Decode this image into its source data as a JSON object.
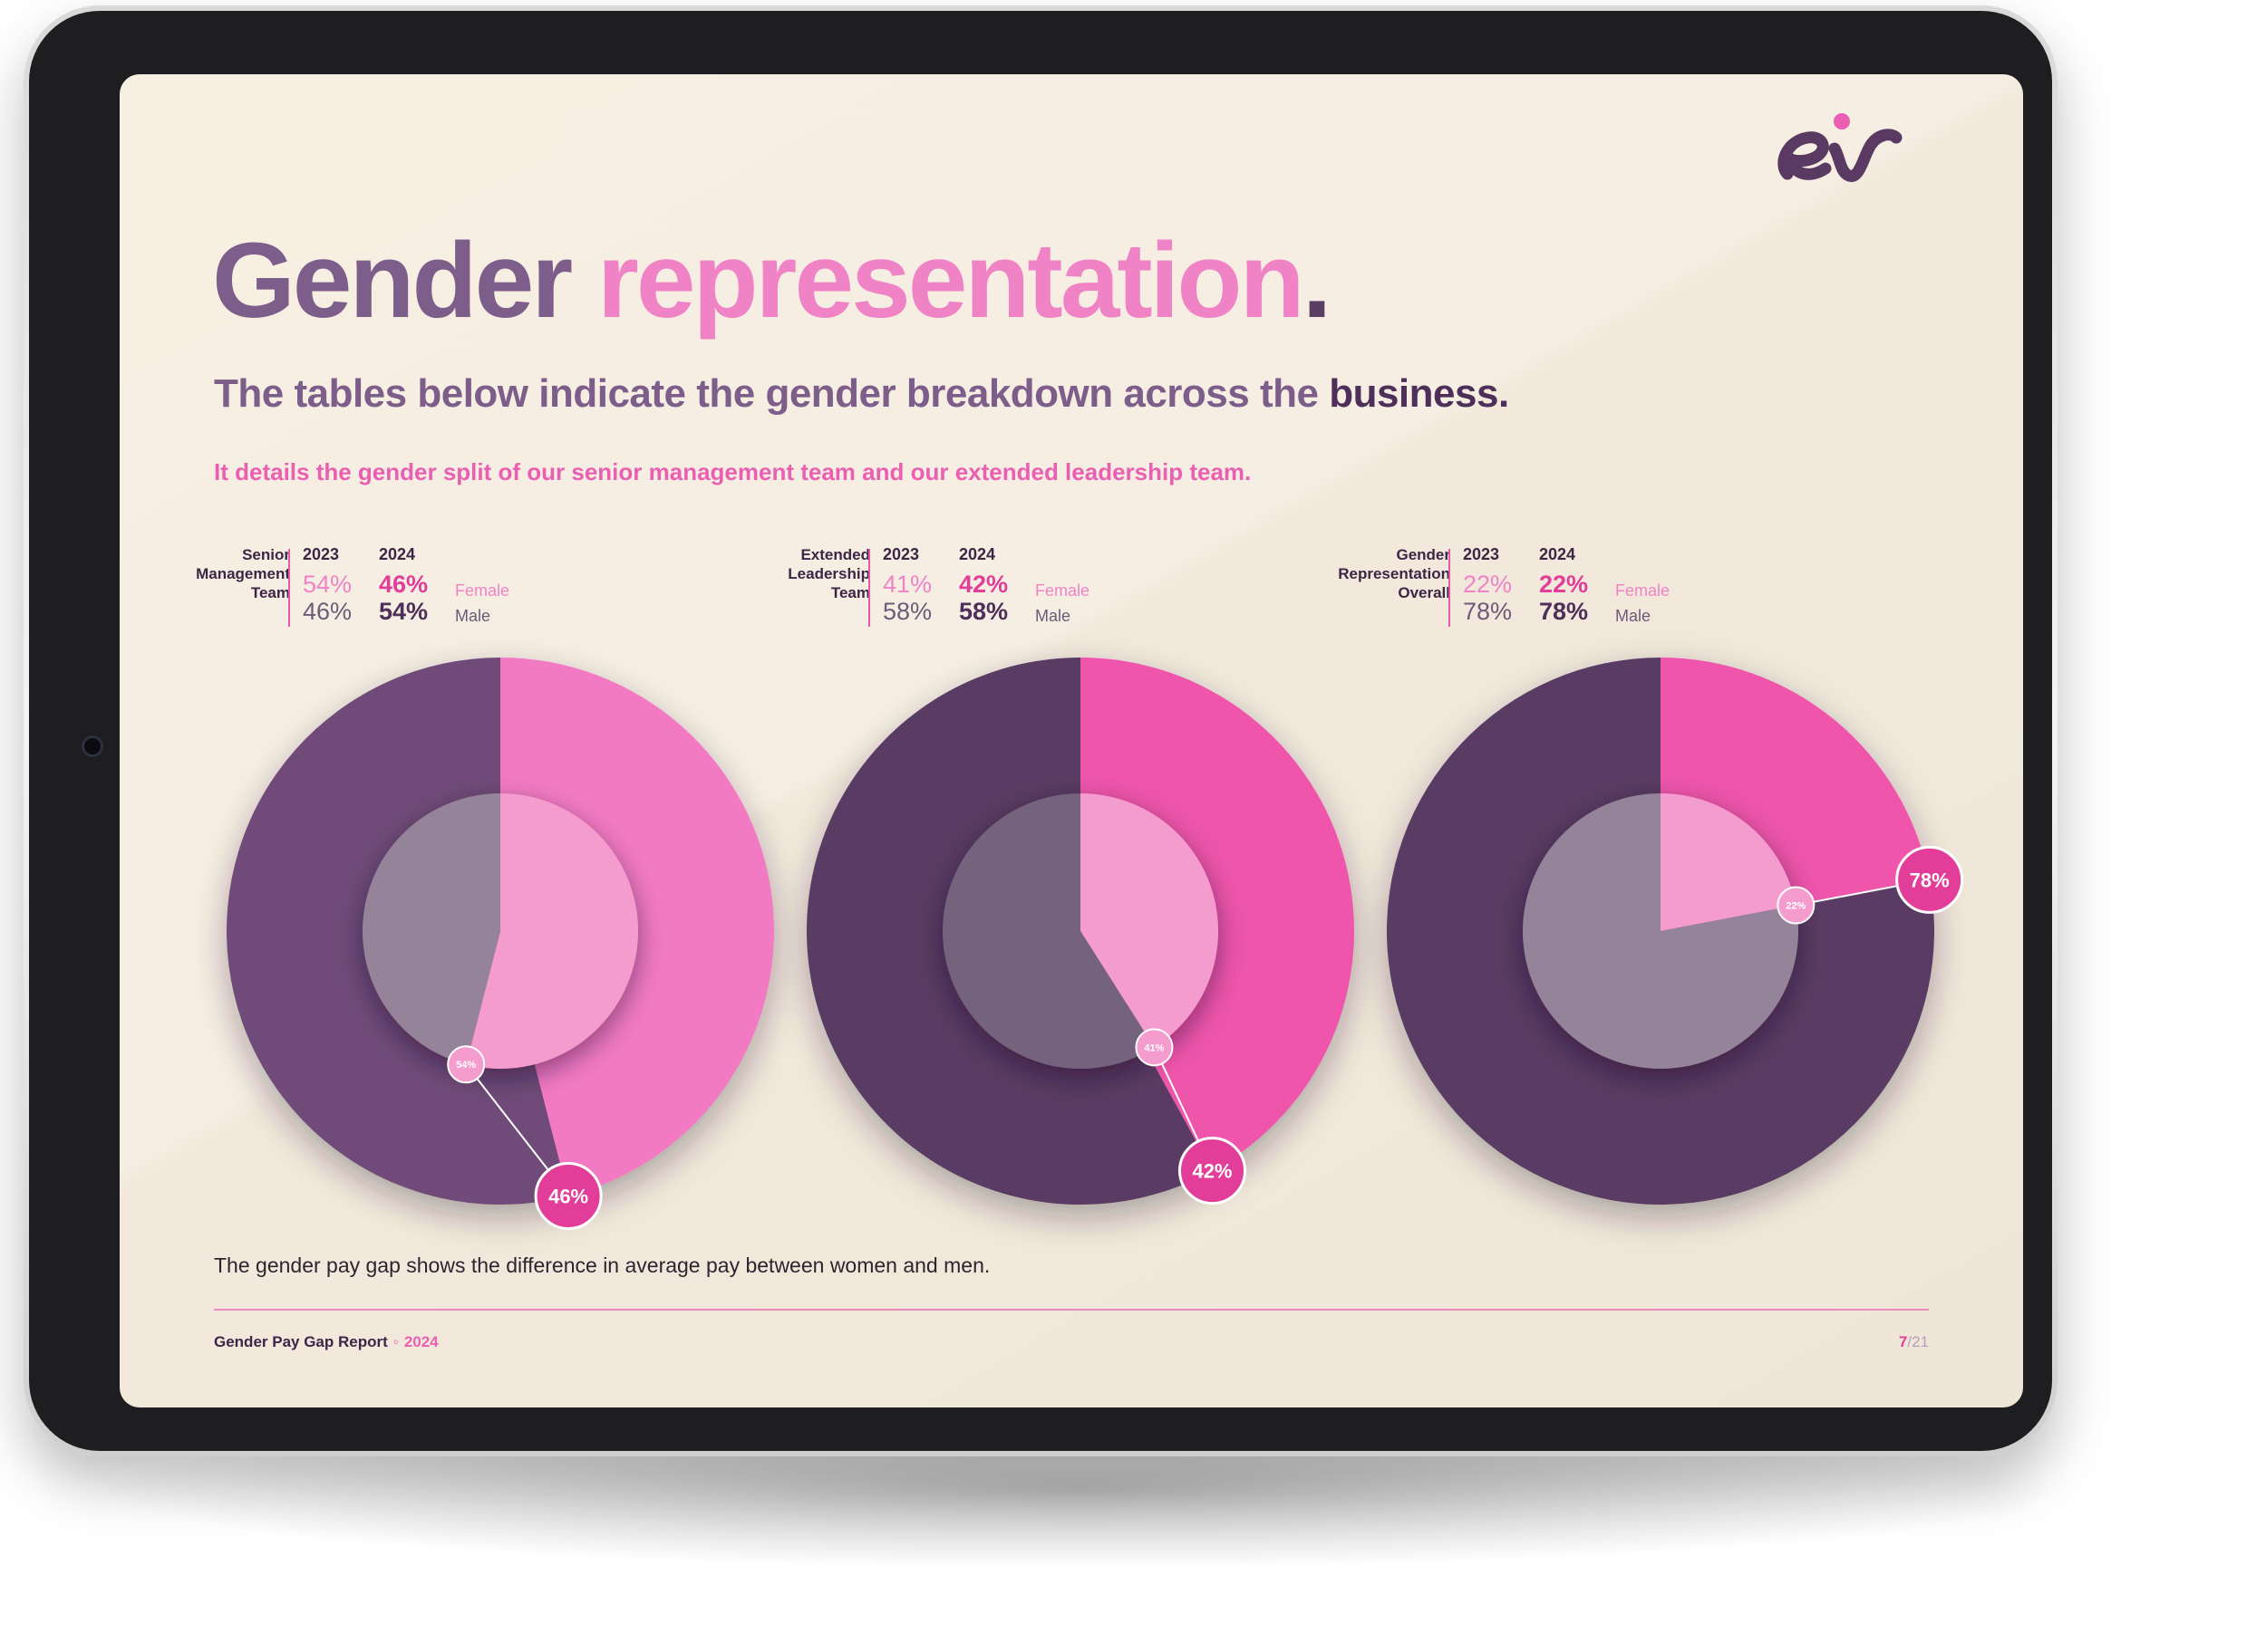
{
  "colors": {
    "female_outer": "#ee55ab",
    "female_outer_light": "#f27ac3",
    "female_inner": "#f59cce",
    "male_outer": "#5a3a63",
    "male_outer_light": "#6f4b79",
    "male_inner": "#958499",
    "male_inner_dark": "#75627c",
    "badge_pink": "#e23e99",
    "accent": "#ea5fb1"
  },
  "title": {
    "part1": "Gender",
    "part2": "representation",
    "period": "."
  },
  "subtitle": {
    "part1": "The tables below indicate the gender breakdown across the ",
    "part2": "business."
  },
  "intro": "It details the gender split of our senior management team and our extended leadership team.",
  "legend": {
    "female": "Female",
    "male": "Male"
  },
  "years": {
    "y2023": "2023",
    "y2024": "2024"
  },
  "panels": [
    {
      "name_lines": [
        "Senior",
        "Management",
        "Team"
      ],
      "f2023": "54%",
      "m2023": "46%",
      "f2024": "46%",
      "m2024": "54%",
      "inner_badge": "54%",
      "outer_badge": "46%"
    },
    {
      "name_lines": [
        "Extended",
        "Leadership",
        "Team"
      ],
      "f2023": "41%",
      "m2023": "58%",
      "f2024": "42%",
      "m2024": "58%",
      "inner_badge": "41%",
      "outer_badge": "42%"
    },
    {
      "name_lines": [
        "Gender",
        "Representation",
        "Overall"
      ],
      "f2023": "22%",
      "m2023": "78%",
      "f2024": "22%",
      "m2024": "78%",
      "inner_badge": "22%",
      "outer_badge": "78%"
    }
  ],
  "chart_data": [
    {
      "type": "pie",
      "title": "Senior Management Team",
      "categories": [
        "Female",
        "Male"
      ],
      "series": [
        {
          "name": "2023",
          "values": [
            54,
            46
          ]
        },
        {
          "name": "2024",
          "values": [
            46,
            54
          ]
        }
      ],
      "badges": {
        "inner": "54%",
        "outer": "46%"
      }
    },
    {
      "type": "pie",
      "title": "Extended Leadership Team",
      "categories": [
        "Female",
        "Male"
      ],
      "series": [
        {
          "name": "2023",
          "values": [
            41,
            58
          ]
        },
        {
          "name": "2024",
          "values": [
            42,
            58
          ]
        }
      ],
      "badges": {
        "inner": "41%",
        "outer": "42%"
      }
    },
    {
      "type": "pie",
      "title": "Gender Representation Overall",
      "categories": [
        "Female",
        "Male"
      ],
      "series": [
        {
          "name": "2023",
          "values": [
            22,
            78
          ]
        },
        {
          "name": "2024",
          "values": [
            22,
            78
          ]
        }
      ],
      "badges": {
        "inner": "22%",
        "outer": "78%"
      }
    }
  ],
  "footnote": "The gender pay gap shows the difference in average pay between women and men.",
  "footer": {
    "report": "Gender Pay Gap Report",
    "separator": "◦",
    "year": "2024",
    "page": "7",
    "total": "/21"
  }
}
